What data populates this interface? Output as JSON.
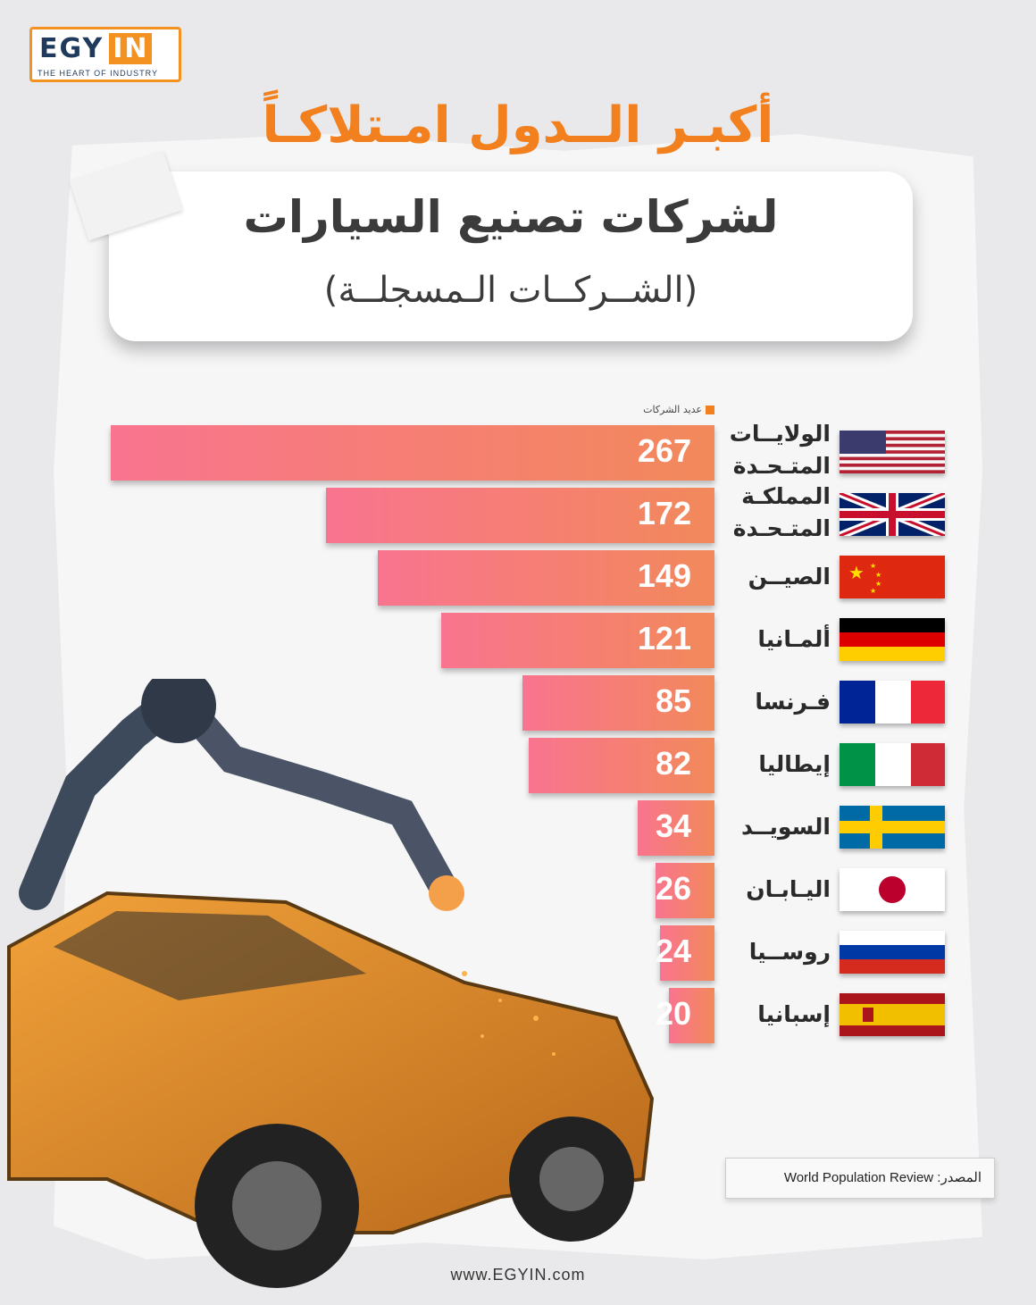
{
  "brand": {
    "word": "EGY",
    "word2": "IN",
    "tagline": "THE HEART OF INDUSTRY"
  },
  "title": {
    "line1": "أكبـر الــدول امـتلاكـاً",
    "line2": "لشركات تصنيع السيارات",
    "line3": "(الشــركــات الـمسجلــة)"
  },
  "legend": "عديد الشركات",
  "colors": {
    "accent": "#f2801f",
    "bar_start": "#f9748f",
    "bar_end": "#f2895a"
  },
  "chart_data": {
    "type": "bar",
    "orientation": "horizontal",
    "categories": [
      "الولايــات المتـحـدة",
      "المملكـة المتـحـدة",
      "الصيــن",
      "ألمـانيا",
      "فـرنسا",
      "إيطاليا",
      "السويــد",
      "اليـابـان",
      "روســيا",
      "إسبانيا"
    ],
    "values": [
      267,
      172,
      149,
      121,
      85,
      82,
      34,
      26,
      24,
      20
    ],
    "flag_icons": [
      "us-flag",
      "uk-flag",
      "china-flag",
      "germany-flag",
      "france-flag",
      "italy-flag",
      "sweden-flag",
      "japan-flag",
      "russia-flag",
      "spain-flag"
    ],
    "legend_position": "top-right"
  },
  "source": "المصدر: World Population Review",
  "website": "www.EGYIN.com"
}
